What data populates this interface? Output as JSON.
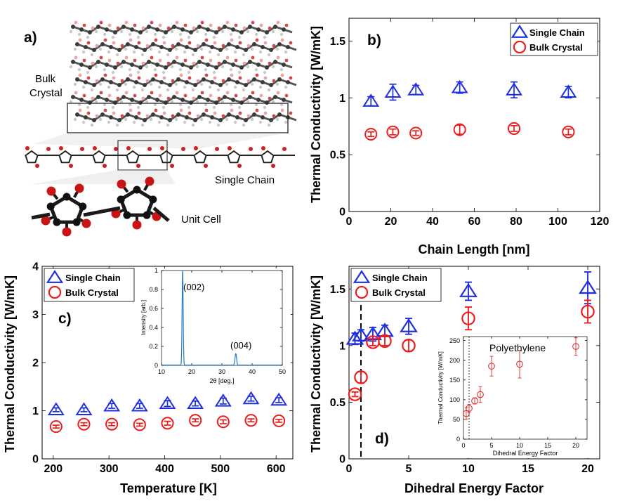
{
  "colors": {
    "blue": "#1f2fe0",
    "red": "#ee1c1c",
    "inset_line": "#2b7bbf",
    "inset_red": "#d92020"
  },
  "panel_a": {
    "label": "a)",
    "bulk_label_line1": "Bulk",
    "bulk_label_line2": "Crystal",
    "chain_label": "Single Chain",
    "cell_label": "Unit Cell"
  },
  "chart_data": [
    {
      "id": "b",
      "type": "scatter",
      "panel_label": "b)",
      "xlabel": "Chain Length [nm]",
      "ylabel": "Thermal Conductivity [W/mK]",
      "xlim": [
        0,
        120
      ],
      "ylim": [
        0,
        1.7
      ],
      "xticks": [
        0,
        20,
        40,
        60,
        80,
        100,
        120
      ],
      "yticks": [
        0,
        0.5,
        1,
        1.5
      ],
      "xtick_labels": [
        "0",
        "20",
        "40",
        "60",
        "80",
        "100",
        "120"
      ],
      "ytick_labels": [
        "0",
        "0.5",
        "1",
        "1.5"
      ],
      "legend_position": "top-right",
      "series": [
        {
          "name": "Single Chain",
          "marker": "triangle",
          "color": "blue",
          "x": [
            10.5,
            21,
            32,
            53,
            79,
            105
          ],
          "y": [
            0.97,
            1.05,
            1.07,
            1.09,
            1.07,
            1.05
          ],
          "err": [
            0.04,
            0.07,
            0.04,
            0.05,
            0.07,
            0.05
          ]
        },
        {
          "name": "Bulk Crystal",
          "marker": "circle",
          "color": "red",
          "x": [
            10.5,
            21,
            32,
            53,
            79,
            105
          ],
          "y": [
            0.68,
            0.7,
            0.69,
            0.72,
            0.73,
            0.7
          ],
          "err": [
            0.02,
            0.025,
            0.02,
            0.04,
            0.025,
            0.025
          ]
        }
      ]
    },
    {
      "id": "c",
      "type": "scatter",
      "panel_label": "c)",
      "xlabel": "Temperature [K]",
      "ylabel": "Thermal Conductivity [W/mK]",
      "xlim": [
        180,
        630
      ],
      "ylim": [
        0,
        4
      ],
      "xticks": [
        200,
        300,
        400,
        500,
        600
      ],
      "yticks": [
        0,
        1,
        2,
        3,
        4
      ],
      "xtick_labels": [
        "200",
        "300",
        "400",
        "500",
        "600"
      ],
      "ytick_labels": [
        "0",
        "1",
        "2",
        "3",
        "4"
      ],
      "legend_position": "top-left",
      "series": [
        {
          "name": "Single Chain",
          "marker": "triangle",
          "color": "blue",
          "x": [
            205,
            255,
            305,
            355,
            405,
            455,
            505,
            555,
            605
          ],
          "y": [
            1.02,
            1.02,
            1.1,
            1.1,
            1.15,
            1.15,
            1.2,
            1.25,
            1.22
          ],
          "err": [
            0.04,
            0.04,
            0.05,
            0.05,
            0.06,
            0.05,
            0.06,
            0.05,
            0.05
          ]
        },
        {
          "name": "Bulk Crystal",
          "marker": "circle",
          "color": "red",
          "x": [
            205,
            255,
            305,
            355,
            405,
            455,
            505,
            555,
            605
          ],
          "y": [
            0.67,
            0.72,
            0.72,
            0.71,
            0.74,
            0.8,
            0.77,
            0.8,
            0.79
          ],
          "err": [
            0.03,
            0.03,
            0.03,
            0.03,
            0.04,
            0.03,
            0.04,
            0.03,
            0.03
          ]
        }
      ]
    },
    {
      "id": "c_inset",
      "type": "line",
      "title": "",
      "xlabel": "2θ [deg.]",
      "ylabel": "Intensity [arb.]",
      "xlim": [
        10,
        50
      ],
      "ylim": [
        0,
        1
      ],
      "xticks": [
        10,
        20,
        30,
        40,
        50
      ],
      "yticks": [
        0,
        0.2,
        0.4,
        0.6,
        0.8,
        1
      ],
      "xtick_labels": [
        "10",
        "20",
        "30",
        "40",
        "50"
      ],
      "ytick_labels": [
        "0",
        "0.2",
        "0.4",
        "0.6",
        "0.8",
        "1"
      ],
      "annotations": [
        "(002)",
        "(004)"
      ],
      "peaks": [
        {
          "center": 17.0,
          "height": 1.0,
          "width": 0.18
        },
        {
          "center": 34.6,
          "height": 0.12,
          "width": 0.25
        }
      ],
      "baseline": 0.004
    },
    {
      "id": "d",
      "type": "scatter",
      "panel_label": "d)",
      "xlabel": "Dihedral Energy Factor",
      "ylabel": "Thermal Conductivity [W/mK]",
      "xlim": [
        0,
        21
      ],
      "ylim": [
        0,
        1.7
      ],
      "xticks": [
        0,
        5,
        10,
        15,
        20
      ],
      "yticks": [
        0,
        0.5,
        1,
        1.5
      ],
      "xtick_labels": [
        "0",
        "5",
        "10",
        "15",
        "20"
      ],
      "ytick_labels": [
        "0",
        "0.5",
        "1",
        "1.5"
      ],
      "vline_x": 1,
      "legend_position": "top-left",
      "series": [
        {
          "name": "Single Chain",
          "marker": "triangle",
          "color": "blue",
          "x": [
            0.5,
            1,
            2,
            3,
            5,
            10,
            20
          ],
          "y": [
            1.06,
            1.09,
            1.1,
            1.13,
            1.17,
            1.48,
            1.51
          ],
          "err": [
            0.05,
            0.05,
            0.06,
            0.05,
            0.07,
            0.08,
            0.14
          ]
        },
        {
          "name": "Bulk Crystal",
          "marker": "circle",
          "color": "red",
          "x": [
            0.5,
            1,
            2,
            3,
            5,
            10,
            20
          ],
          "y": [
            0.57,
            0.72,
            1.03,
            1.04,
            1.0,
            1.24,
            1.3
          ],
          "err": [
            0.02,
            0.05,
            0.03,
            0.04,
            0.05,
            0.1,
            0.1
          ]
        }
      ]
    },
    {
      "id": "d_inset",
      "type": "scatter",
      "title": "Polyethylene",
      "xlabel": "Dihedral Energy Factor",
      "ylabel": "Thermal Conductivity [W/mK]",
      "xlim": [
        0,
        22
      ],
      "ylim": [
        0,
        260
      ],
      "xticks": [
        0,
        5,
        10,
        15,
        20
      ],
      "yticks": [
        0,
        50,
        100,
        150,
        200,
        250
      ],
      "xtick_labels": [
        "0",
        "5",
        "10",
        "15",
        "20"
      ],
      "ytick_labels": [
        "0",
        "50",
        "100",
        "150",
        "200",
        "250"
      ],
      "vline_x": 1,
      "series": [
        {
          "name": "Polyethylene",
          "marker": "circle",
          "color": "inset_red",
          "x": [
            0.5,
            1,
            2,
            3,
            5,
            10,
            20
          ],
          "y": [
            65,
            78,
            97,
            113,
            185,
            190,
            235
          ],
          "err": [
            15,
            10,
            8,
            20,
            25,
            35,
            22
          ]
        }
      ]
    }
  ]
}
